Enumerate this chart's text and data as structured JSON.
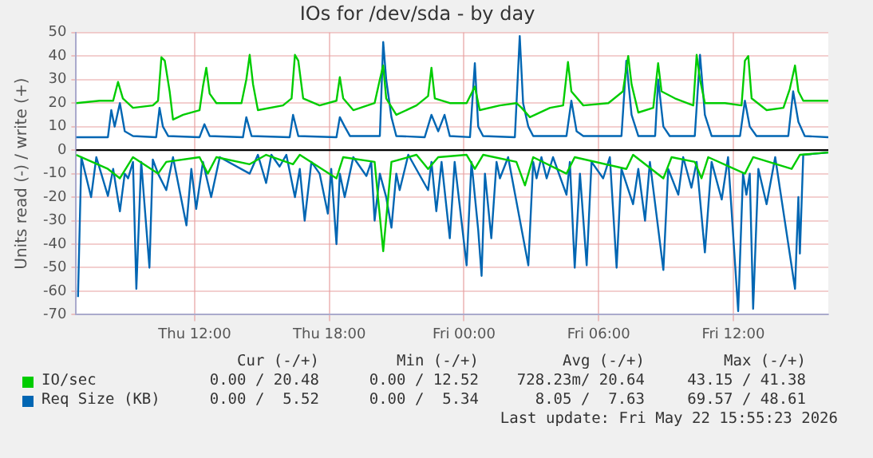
{
  "chart_data": {
    "type": "line",
    "title": "IOs for /dev/sda - by day",
    "ylabel": "Units read (-) / write (+)",
    "xlim": [
      "2026-05-21T06:43",
      "2026-05-22T16:14"
    ],
    "xticks": [
      {
        "value": "2026-05-21T12:00",
        "label": "Thu 12:00"
      },
      {
        "value": "2026-05-21T18:00",
        "label": "Thu 18:00"
      },
      {
        "value": "2026-05-22T00:00",
        "label": "Fri 00:00"
      },
      {
        "value": "2026-05-22T06:00",
        "label": "Fri 06:00"
      },
      {
        "value": "2026-05-22T12:00",
        "label": "Fri 12:00"
      }
    ],
    "ylim": [
      -70,
      50
    ],
    "yticks": [
      -70,
      -60,
      -50,
      -40,
      -30,
      -20,
      -10,
      0,
      10,
      20,
      30,
      40,
      50
    ],
    "grid": true,
    "legend": "bottom left",
    "ref_lines": [
      {
        "axis": "y",
        "value": 0,
        "color": "#000000"
      }
    ],
    "annotations": [
      "Cur (-/+)",
      "Min (-/+)",
      "Avg (-/+)",
      "Max (-/+)",
      "0.00 / 20.48",
      "0.00 / 12.52",
      "728.23m/ 20.64",
      "43.15 / 41.38",
      "0.00 /  5.52",
      "0.00 /  5.34",
      "8.05 /  7.63",
      "69.57 / 48.61",
      "Last update: Fri May 22 15:55:23 2026"
    ],
    "series": [
      {
        "name": "IO/sec",
        "color": "#00cc00",
        "x": [
          "2026-05-21T06:43",
          "2026-05-21T07:46",
          "2026-05-21T08:22",
          "2026-05-21T08:35",
          "2026-05-21T08:48",
          "2026-05-21T09:15",
          "2026-05-21T10:08",
          "2026-05-21T10:22",
          "2026-05-21T10:31",
          "2026-05-21T10:40",
          "2026-05-21T10:53",
          "2026-05-21T11:02",
          "2026-05-21T11:29",
          "2026-05-21T12:13",
          "2026-05-21T12:22",
          "2026-05-21T12:31",
          "2026-05-21T12:40",
          "2026-05-21T12:58",
          "2026-05-21T14:05",
          "2026-05-21T14:18",
          "2026-05-21T14:27",
          "2026-05-21T14:36",
          "2026-05-21T14:49",
          "2026-05-21T15:56",
          "2026-05-21T16:19",
          "2026-05-21T16:28",
          "2026-05-21T16:37",
          "2026-05-21T16:50",
          "2026-05-21T17:34",
          "2026-05-21T18:19",
          "2026-05-21T18:28",
          "2026-05-21T18:37",
          "2026-05-21T19:04",
          "2026-05-21T20:01",
          "2026-05-21T20:15",
          "2026-05-21T20:24",
          "2026-05-21T20:32",
          "2026-05-21T20:59",
          "2026-05-21T21:53",
          "2026-05-21T22:24",
          "2026-05-21T22:33",
          "2026-05-21T22:42",
          "2026-05-21T23:22",
          "2026-05-22T00:07",
          "2026-05-22T00:29",
          "2026-05-22T00:42",
          "2026-05-22T01:36",
          "2026-05-22T02:20",
          "2026-05-22T02:34",
          "2026-05-22T02:56",
          "2026-05-22T03:50",
          "2026-05-22T04:25",
          "2026-05-22T04:38",
          "2026-05-22T04:47",
          "2026-05-22T05:19",
          "2026-05-22T06:26",
          "2026-05-22T07:05",
          "2026-05-22T07:19",
          "2026-05-22T07:28",
          "2026-05-22T07:46",
          "2026-05-22T08:26",
          "2026-05-22T08:39",
          "2026-05-22T08:48",
          "2026-05-22T09:24",
          "2026-05-22T10:13",
          "2026-05-22T10:22",
          "2026-05-22T10:31",
          "2026-05-22T10:44",
          "2026-05-22T11:38",
          "2026-05-22T12:22",
          "2026-05-22T12:31",
          "2026-05-22T12:40",
          "2026-05-22T12:49",
          "2026-05-22T13:29",
          "2026-05-22T14:14",
          "2026-05-22T14:31",
          "2026-05-22T14:45",
          "2026-05-22T14:54",
          "2026-05-22T15:07",
          "2026-05-22T16:14"
        ],
        "values": [
          20,
          21,
          21,
          29,
          22,
          18,
          19,
          21,
          39.5,
          38,
          25,
          13,
          15,
          17,
          27,
          35,
          24,
          20,
          20,
          30,
          40.5,
          28,
          17,
          19,
          22,
          40.5,
          38,
          22,
          19,
          21,
          31,
          22,
          17,
          20,
          30,
          36,
          22,
          15,
          19,
          23,
          35,
          22,
          20,
          20,
          27,
          17,
          19,
          20,
          18,
          14,
          18,
          19,
          37.5,
          25,
          19,
          20,
          25,
          40,
          28,
          16,
          18,
          37,
          25,
          22,
          19,
          40.5,
          30,
          20,
          20,
          19,
          38,
          40,
          22,
          17,
          18,
          26,
          36,
          25,
          21,
          21
        ]
      },
      {
        "name": "Req Size (KB)",
        "color": "#0066b3",
        "x": [
          "2026-05-21T06:43",
          "2026-05-21T08:08",
          "2026-05-21T08:17",
          "2026-05-21T08:26",
          "2026-05-21T08:40",
          "2026-05-21T08:53",
          "2026-05-21T09:15",
          "2026-05-21T10:17",
          "2026-05-21T10:26",
          "2026-05-21T10:35",
          "2026-05-21T10:49",
          "2026-05-21T12:13",
          "2026-05-21T12:26",
          "2026-05-21T12:40",
          "2026-05-21T14:09",
          "2026-05-21T14:18",
          "2026-05-21T14:32",
          "2026-05-21T16:14",
          "2026-05-21T16:23",
          "2026-05-21T16:37",
          "2026-05-21T18:19",
          "2026-05-21T18:28",
          "2026-05-21T18:41",
          "2026-05-21T18:55",
          "2026-05-21T20:15",
          "2026-05-21T20:24",
          "2026-05-21T20:32",
          "2026-05-21T20:46",
          "2026-05-21T20:59",
          "2026-05-21T22:15",
          "2026-05-21T22:33",
          "2026-05-21T22:51",
          "2026-05-21T23:08",
          "2026-05-21T23:22",
          "2026-05-22T00:16",
          "2026-05-22T00:29",
          "2026-05-22T00:38",
          "2026-05-22T00:51",
          "2026-05-22T02:16",
          "2026-05-22T02:29",
          "2026-05-22T02:38",
          "2026-05-22T02:52",
          "2026-05-22T03:05",
          "2026-05-22T04:34",
          "2026-05-22T04:47",
          "2026-05-22T05:01",
          "2026-05-22T05:19",
          "2026-05-22T07:01",
          "2026-05-22T07:14",
          "2026-05-22T07:28",
          "2026-05-22T07:46",
          "2026-05-22T08:31",
          "2026-05-22T08:39",
          "2026-05-22T08:53",
          "2026-05-22T09:10",
          "2026-05-22T10:17",
          "2026-05-22T10:31",
          "2026-05-22T10:44",
          "2026-05-22T11:02",
          "2026-05-22T12:18",
          "2026-05-22T12:31",
          "2026-05-22T12:44",
          "2026-05-22T13:02",
          "2026-05-22T14:27",
          "2026-05-22T14:40",
          "2026-05-22T14:54",
          "2026-05-22T15:11",
          "2026-05-22T16:14"
        ],
        "values": [
          5.5,
          5.5,
          17,
          10,
          20,
          8,
          6,
          5.5,
          18,
          10,
          6,
          5.5,
          11,
          6,
          5.5,
          14,
          6,
          5.5,
          15,
          6,
          5.5,
          14,
          10,
          6,
          6,
          46,
          30,
          14,
          6,
          5.5,
          15,
          8,
          15,
          6,
          5.5,
          37,
          10,
          6,
          5.5,
          48.5,
          20,
          10,
          6,
          6,
          21,
          8,
          6,
          6,
          38,
          15,
          6,
          6,
          30,
          10,
          6,
          6,
          40.5,
          15,
          6,
          6,
          21,
          10,
          6,
          6,
          25,
          12,
          6,
          5.5
        ]
      },
      {
        "color": "#00cc00",
        "x": [
          "2026-05-21T06:43",
          "2026-05-21T08:08",
          "2026-05-21T08:40",
          "2026-05-21T09:15",
          "2026-05-21T10:22",
          "2026-05-21T10:44",
          "2026-05-21T12:13",
          "2026-05-21T12:35",
          "2026-05-21T12:58",
          "2026-05-21T14:27",
          "2026-05-21T15:11",
          "2026-05-21T16:23",
          "2026-05-21T16:41",
          "2026-05-21T18:19",
          "2026-05-21T18:37",
          "2026-05-21T20:01",
          "2026-05-21T20:24",
          "2026-05-21T20:46",
          "2026-05-21T21:53",
          "2026-05-21T22:24",
          "2026-05-21T22:51",
          "2026-05-22T00:07",
          "2026-05-22T00:29",
          "2026-05-22T00:51",
          "2026-05-22T02:20",
          "2026-05-22T02:43",
          "2026-05-22T03:05",
          "2026-05-22T04:34",
          "2026-05-22T04:56",
          "2026-05-22T07:14",
          "2026-05-22T07:32",
          "2026-05-22T08:53",
          "2026-05-22T09:15",
          "2026-05-22T10:17",
          "2026-05-22T10:35",
          "2026-05-22T10:53",
          "2026-05-22T12:31",
          "2026-05-22T12:53",
          "2026-05-22T14:36",
          "2026-05-22T14:58",
          "2026-05-22T16:14"
        ],
        "values": [
          -2,
          -8,
          -12,
          -3,
          -10,
          -5,
          -3,
          -10,
          -3,
          -6,
          -2,
          -6,
          -2,
          -12,
          -3,
          -5,
          -43,
          -5,
          -2,
          -8,
          -3,
          -2,
          -8,
          -2,
          -5,
          -15,
          -3,
          -10,
          -3,
          -8,
          -2,
          -12,
          -3,
          -5,
          -12,
          -3,
          -10,
          -3,
          -8,
          -2,
          -1
        ]
      },
      {
        "color": "#0066b3",
        "x": [
          "2026-05-21T06:48",
          "2026-05-21T06:57",
          "2026-05-21T07:23",
          "2026-05-21T07:37",
          "2026-05-21T08:08",
          "2026-05-21T08:22",
          "2026-05-21T08:40",
          "2026-05-21T08:53",
          "2026-05-21T09:02",
          "2026-05-21T09:15",
          "2026-05-21T09:24",
          "2026-05-21T09:37",
          "2026-05-21T09:59",
          "2026-05-21T10:08",
          "2026-05-21T10:22",
          "2026-05-21T10:44",
          "2026-05-21T11:02",
          "2026-05-21T11:38",
          "2026-05-21T11:51",
          "2026-05-21T12:04",
          "2026-05-21T12:22",
          "2026-05-21T12:44",
          "2026-05-21T13:07",
          "2026-05-21T14:27",
          "2026-05-21T14:49",
          "2026-05-21T15:11",
          "2026-05-21T15:25",
          "2026-05-21T15:47",
          "2026-05-21T16:05",
          "2026-05-21T16:28",
          "2026-05-21T16:41",
          "2026-05-21T16:54",
          "2026-05-21T17:12",
          "2026-05-21T17:34",
          "2026-05-21T17:56",
          "2026-05-21T18:05",
          "2026-05-21T18:19",
          "2026-05-21T18:28",
          "2026-05-21T18:41",
          "2026-05-21T19:04",
          "2026-05-21T19:39",
          "2026-05-21T19:52",
          "2026-05-21T20:01",
          "2026-05-21T20:15",
          "2026-05-21T20:32",
          "2026-05-21T20:46",
          "2026-05-21T20:59",
          "2026-05-21T21:08",
          "2026-05-21T21:31",
          "2026-05-21T22:24",
          "2026-05-21T22:33",
          "2026-05-21T22:46",
          "2026-05-21T23:00",
          "2026-05-21T23:22",
          "2026-05-21T23:35",
          "2026-05-22T00:07",
          "2026-05-22T00:20",
          "2026-05-22T00:38",
          "2026-05-22T00:47",
          "2026-05-22T00:56",
          "2026-05-22T01:13",
          "2026-05-22T01:27",
          "2026-05-22T01:36",
          "2026-05-22T01:58",
          "2026-05-22T02:52",
          "2026-05-22T03:05",
          "2026-05-22T03:14",
          "2026-05-22T03:27",
          "2026-05-22T03:41",
          "2026-05-22T03:58",
          "2026-05-22T04:34",
          "2026-05-22T04:43",
          "2026-05-22T04:56",
          "2026-05-22T05:10",
          "2026-05-22T05:28",
          "2026-05-22T05:41",
          "2026-05-22T06:12",
          "2026-05-22T06:30",
          "2026-05-22T06:48",
          "2026-05-22T07:01",
          "2026-05-22T07:32",
          "2026-05-22T07:46",
          "2026-05-22T08:04",
          "2026-05-22T08:17",
          "2026-05-22T08:53",
          "2026-05-22T09:06",
          "2026-05-22T09:33",
          "2026-05-22T09:46",
          "2026-05-22T10:08",
          "2026-05-22T10:22",
          "2026-05-22T10:44",
          "2026-05-22T11:02",
          "2026-05-22T11:29",
          "2026-05-22T11:46",
          "2026-05-22T12:13",
          "2026-05-22T12:26",
          "2026-05-22T12:35",
          "2026-05-22T12:44",
          "2026-05-22T12:53",
          "2026-05-22T13:07",
          "2026-05-22T13:29",
          "2026-05-22T13:52",
          "2026-05-22T14:45",
          "2026-05-22T14:54",
          "2026-05-22T14:58",
          "2026-05-22T15:07",
          "2026-05-22T16:14"
        ],
        "values": [
          -62.5,
          -3,
          -20,
          -3,
          -19.5,
          -8,
          -26,
          -10,
          -12,
          -5,
          -59,
          -5,
          -50,
          -4,
          -10,
          -17,
          -3,
          -32,
          -8,
          -25,
          -5,
          -20,
          -3,
          -10,
          -2,
          -14,
          -2,
          -7,
          -2,
          -20,
          -8,
          -30,
          -5,
          -10,
          -27,
          -8,
          -40,
          -10,
          -20,
          -3,
          -11,
          -5,
          -30,
          -10,
          -20,
          -33,
          -10,
          -17,
          -2,
          -17,
          -5,
          -26,
          -5,
          -37.5,
          -5,
          -49,
          -5,
          -34,
          -53.5,
          -10,
          -37.5,
          -5,
          -12,
          -3,
          -49,
          -5,
          -12,
          -3,
          -12,
          -3,
          -19,
          -5,
          -50,
          -10,
          -49,
          -5,
          -12,
          -3,
          -50,
          -8,
          -23,
          -8,
          -30,
          -5,
          -51,
          -8,
          -19,
          -3,
          -16,
          -5,
          -43.5,
          -5,
          -21,
          -3,
          -68.5,
          -10,
          -19,
          -10,
          -67.5,
          -8,
          -23,
          -3,
          -59,
          -20,
          -44,
          -2,
          -1
        ]
      }
    ]
  }
}
